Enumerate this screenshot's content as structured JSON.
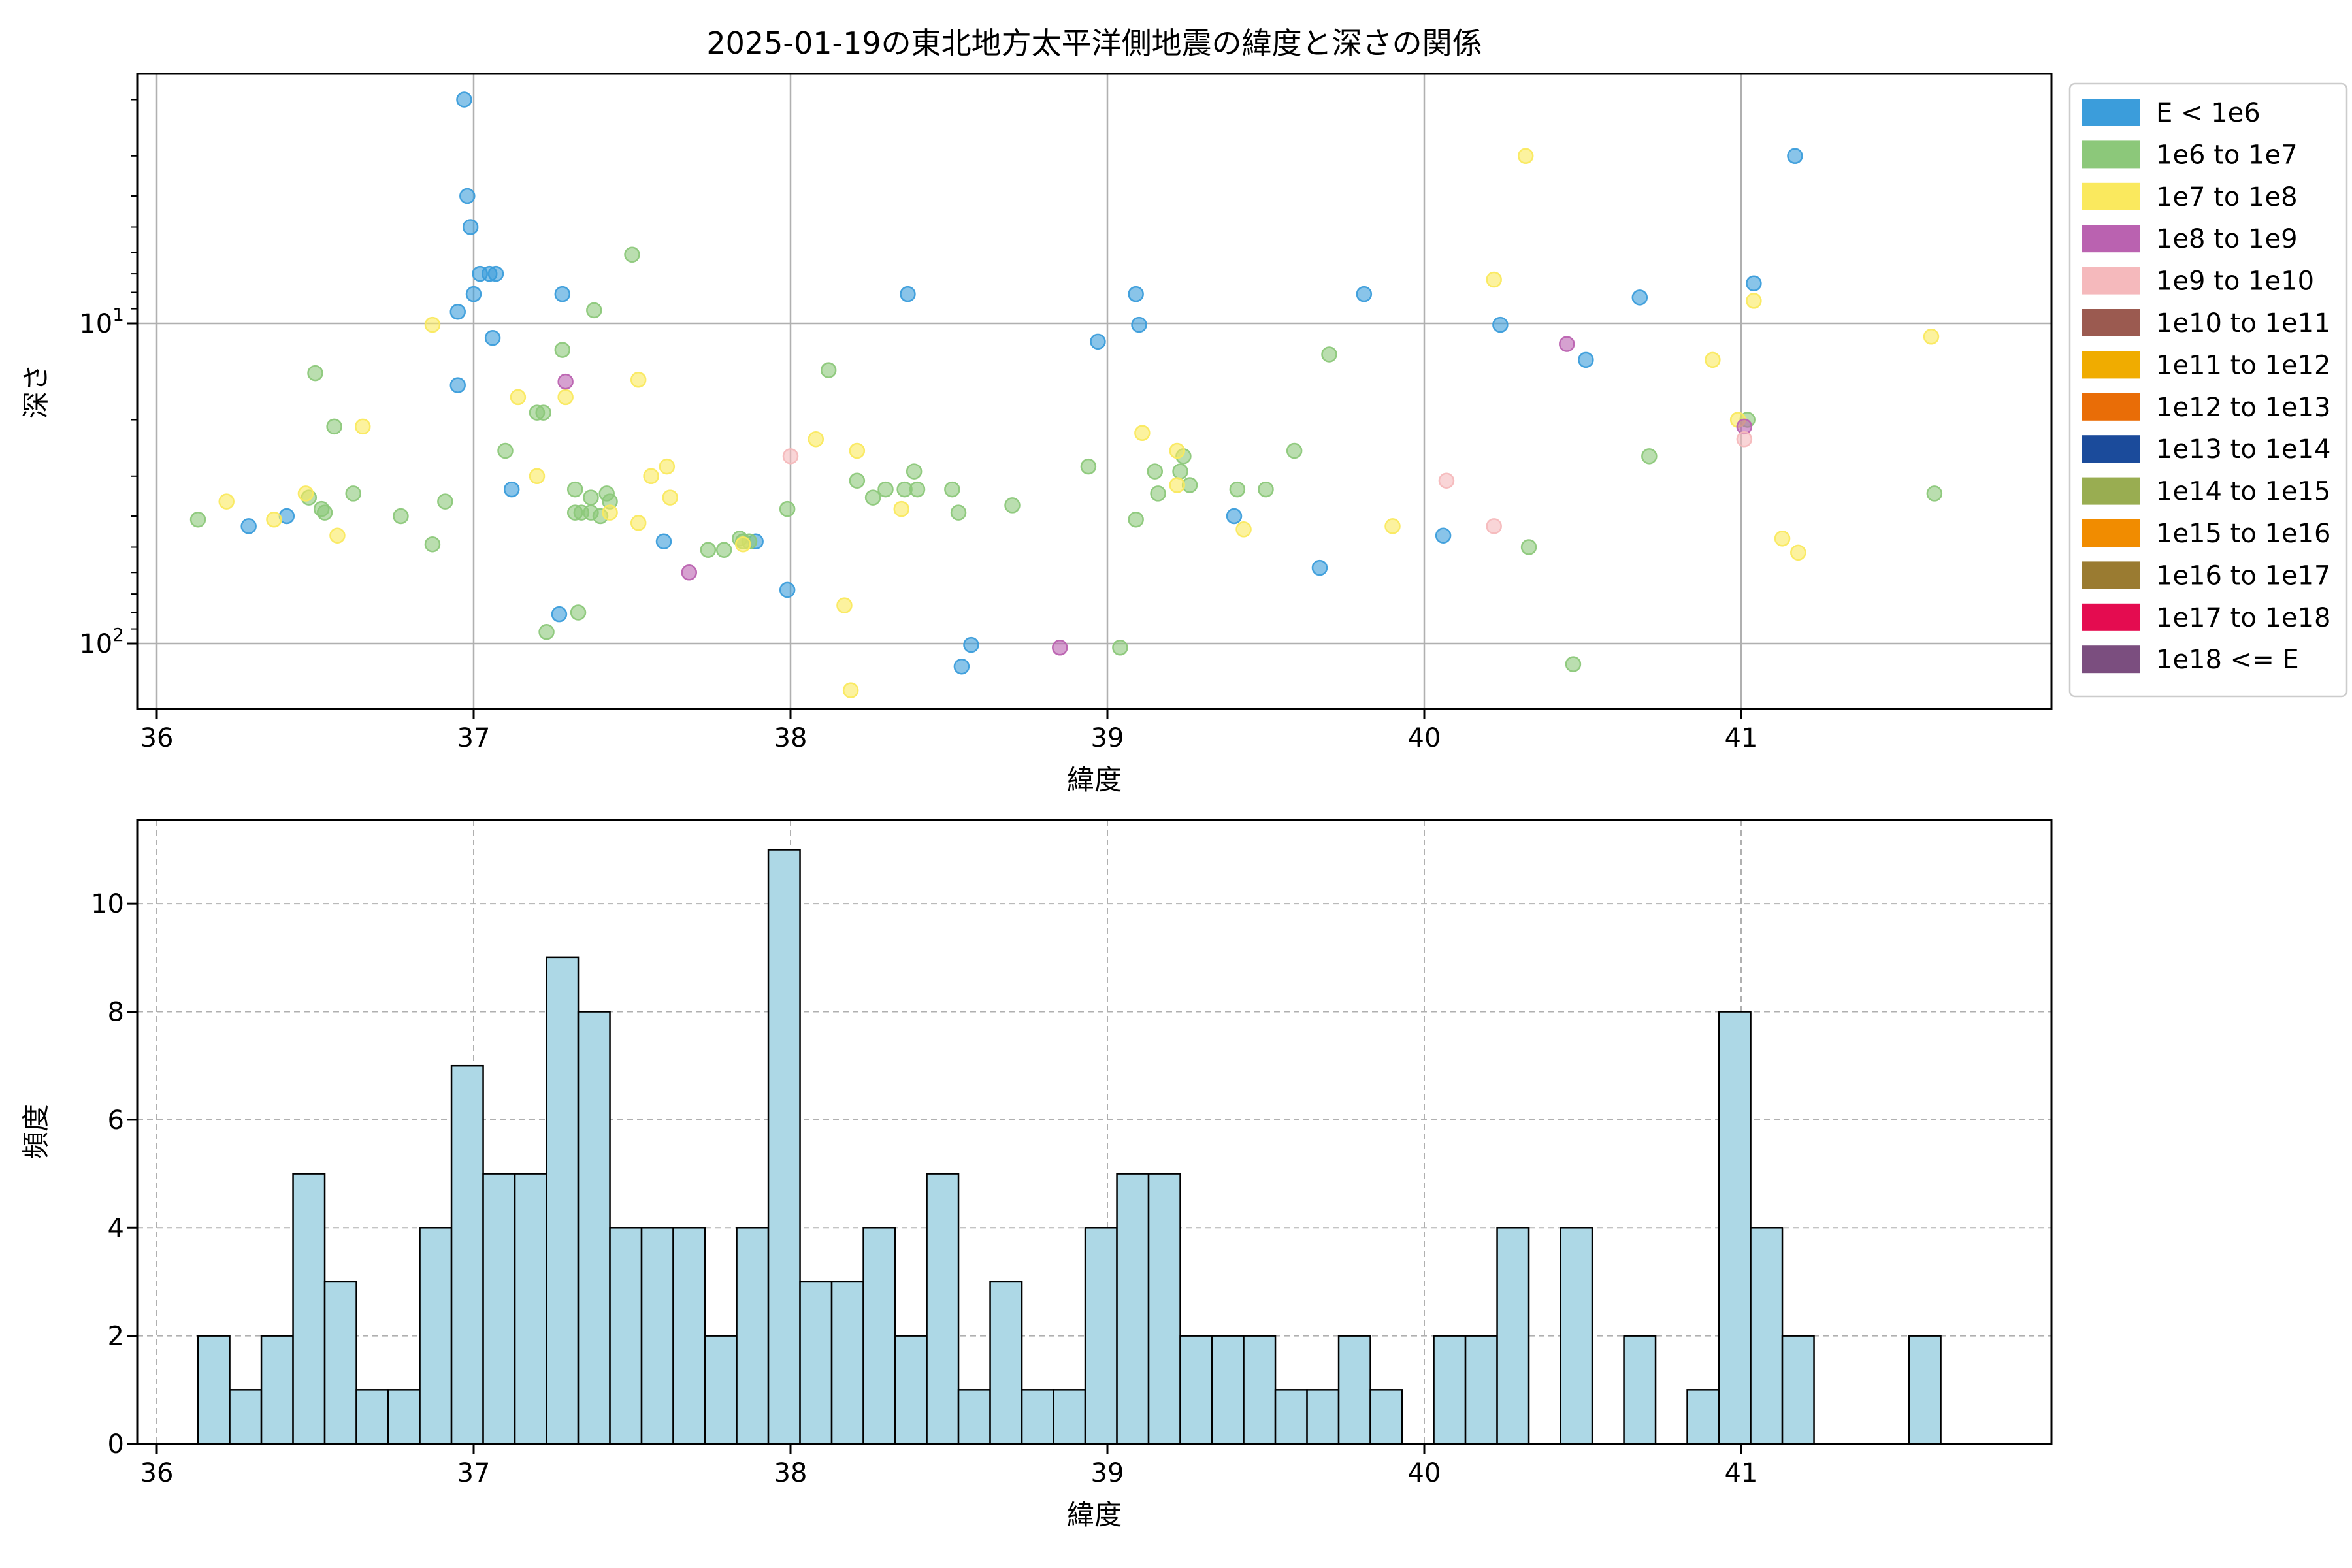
{
  "title": "2025-01-19の東北地方太平洋側地震の緯度と深さの関係",
  "legend": {
    "entries": [
      {
        "label": "E < 1e6",
        "color": "#3B9DDB"
      },
      {
        "label": "1e6 to 1e7",
        "color": "#8CC87A"
      },
      {
        "label": "1e7 to 1e8",
        "color": "#FAE95E"
      },
      {
        "label": "1e8 to 1e9",
        "color": "#BA62B0"
      },
      {
        "label": "1e9 to 1e10",
        "color": "#F5B9BC"
      },
      {
        "label": "1e10 to 1e11",
        "color": "#9B5A50"
      },
      {
        "label": "1e11 to 1e12",
        "color": "#F0AC00"
      },
      {
        "label": "1e12 to 1e13",
        "color": "#E96D07"
      },
      {
        "label": "1e13 to 1e14",
        "color": "#1B4B9B"
      },
      {
        "label": "1e14 to 1e15",
        "color": "#99AD51"
      },
      {
        "label": "1e15 to 1e16",
        "color": "#F18C00"
      },
      {
        "label": "1e16 to 1e17",
        "color": "#9A7B31"
      },
      {
        "label": "1e17 to 1e18",
        "color": "#E40C50"
      },
      {
        "label": "1e18 <= E",
        "color": "#7B4E7F"
      }
    ]
  },
  "chart_data": [
    {
      "type": "scatter",
      "title": "2025-01-19の東北地方太平洋側地震の緯度と深さの関係",
      "xlabel": "緯度",
      "ylabel": "深さ",
      "xlim": [
        35.94,
        41.98
      ],
      "ylim": [
        1.66,
        160
      ],
      "y_scale": "log-inverted",
      "xticks": [
        36,
        37,
        38,
        39,
        40,
        41
      ],
      "yticks": [
        {
          "v": 10,
          "base": "10",
          "exp": "1"
        },
        {
          "v": 100,
          "base": "10",
          "exp": "2"
        }
      ],
      "grid": "solid-major",
      "marker_alpha": 0.6,
      "classes": [
        "E < 1e6",
        "1e6 to 1e7",
        "1e7 to 1e8",
        "1e8 to 1e9",
        "1e9 to 1e10",
        "1e10 to 1e11",
        "1e11 to 1e12",
        "1e12 to 1e13",
        "1e13 to 1e14",
        "1e14 to 1e15",
        "1e15 to 1e16",
        "1e16 to 1e17",
        "1e17 to 1e18",
        "1e18 <= E"
      ],
      "points": [
        [
          36.97,
          2.0,
          0
        ],
        [
          36.98,
          4.0,
          0
        ],
        [
          36.99,
          5.0,
          0
        ],
        [
          37.02,
          7.0,
          0
        ],
        [
          37.05,
          7.0,
          0
        ],
        [
          37.07,
          7.0,
          0
        ],
        [
          37.0,
          8.1,
          0
        ],
        [
          36.95,
          9.2,
          0
        ],
        [
          37.28,
          8.1,
          0
        ],
        [
          37.06,
          11.1,
          0
        ],
        [
          36.95,
          15.6,
          0
        ],
        [
          36.29,
          43,
          0
        ],
        [
          36.41,
          40,
          0
        ],
        [
          37.12,
          33,
          0
        ],
        [
          37.6,
          48,
          0
        ],
        [
          37.89,
          48,
          0
        ],
        [
          37.27,
          81,
          0
        ],
        [
          37.99,
          68,
          0
        ],
        [
          38.37,
          8.1,
          0
        ],
        [
          38.57,
          101,
          0
        ],
        [
          38.54,
          118,
          0
        ],
        [
          38.97,
          11.4,
          0
        ],
        [
          39.09,
          8.1,
          0
        ],
        [
          39.1,
          10.1,
          0
        ],
        [
          39.4,
          40,
          0
        ],
        [
          39.67,
          58,
          0
        ],
        [
          39.81,
          8.1,
          0
        ],
        [
          40.06,
          46,
          0
        ],
        [
          40.24,
          10.1,
          0
        ],
        [
          40.51,
          13,
          0
        ],
        [
          40.68,
          8.3,
          0
        ],
        [
          41.04,
          7.5,
          0
        ],
        [
          41.17,
          3.0,
          0
        ],
        [
          37.5,
          6.1,
          1
        ],
        [
          37.38,
          9.1,
          1
        ],
        [
          37.28,
          12.1,
          1
        ],
        [
          36.5,
          14.3,
          1
        ],
        [
          37.2,
          19,
          1
        ],
        [
          37.22,
          19,
          1
        ],
        [
          36.56,
          21,
          1
        ],
        [
          37.1,
          25,
          1
        ],
        [
          36.13,
          41,
          1
        ],
        [
          36.48,
          35,
          1
        ],
        [
          36.52,
          38,
          1
        ],
        [
          36.53,
          39,
          1
        ],
        [
          36.62,
          34,
          1
        ],
        [
          36.77,
          40,
          1
        ],
        [
          36.91,
          36,
          1
        ],
        [
          36.87,
          49,
          1
        ],
        [
          37.32,
          33,
          1
        ],
        [
          37.37,
          35,
          1
        ],
        [
          37.42,
          34,
          1
        ],
        [
          37.43,
          36,
          1
        ],
        [
          37.32,
          39,
          1
        ],
        [
          37.34,
          39,
          1
        ],
        [
          37.37,
          39,
          1
        ],
        [
          37.4,
          40,
          1
        ],
        [
          37.74,
          51,
          1
        ],
        [
          37.79,
          51,
          1
        ],
        [
          37.84,
          47,
          1
        ],
        [
          37.85,
          48,
          1
        ],
        [
          37.87,
          48,
          1
        ],
        [
          37.33,
          80,
          1
        ],
        [
          37.23,
          92,
          1
        ],
        [
          37.99,
          38,
          1
        ],
        [
          38.12,
          14,
          1
        ],
        [
          38.21,
          31,
          1
        ],
        [
          38.26,
          35,
          1
        ],
        [
          38.3,
          33,
          1
        ],
        [
          38.36,
          33,
          1
        ],
        [
          38.39,
          29,
          1
        ],
        [
          38.4,
          33,
          1
        ],
        [
          38.51,
          33,
          1
        ],
        [
          38.53,
          39,
          1
        ],
        [
          38.7,
          37,
          1
        ],
        [
          38.94,
          28,
          1
        ],
        [
          39.04,
          103,
          1
        ],
        [
          39.09,
          41,
          1
        ],
        [
          39.15,
          29,
          1
        ],
        [
          39.16,
          34,
          1
        ],
        [
          39.23,
          29,
          1
        ],
        [
          39.24,
          26,
          1
        ],
        [
          39.26,
          32,
          1
        ],
        [
          39.41,
          33,
          1
        ],
        [
          39.5,
          33,
          1
        ],
        [
          39.59,
          25,
          1
        ],
        [
          39.7,
          12.5,
          1
        ],
        [
          40.33,
          50,
          1
        ],
        [
          40.47,
          116,
          1
        ],
        [
          40.71,
          26,
          1
        ],
        [
          41.02,
          20,
          1
        ],
        [
          41.61,
          34,
          1
        ],
        [
          36.87,
          10.1,
          2
        ],
        [
          37.14,
          17,
          2
        ],
        [
          37.29,
          17,
          2
        ],
        [
          37.52,
          15,
          2
        ],
        [
          37.2,
          30,
          2
        ],
        [
          36.22,
          36,
          2
        ],
        [
          36.37,
          41,
          2
        ],
        [
          36.47,
          34,
          2
        ],
        [
          36.57,
          46,
          2
        ],
        [
          36.65,
          21,
          2
        ],
        [
          37.56,
          30,
          2
        ],
        [
          37.61,
          28,
          2
        ],
        [
          37.43,
          39,
          2
        ],
        [
          37.52,
          42,
          2
        ],
        [
          37.62,
          35,
          2
        ],
        [
          37.85,
          49,
          2
        ],
        [
          38.08,
          23,
          2
        ],
        [
          38.21,
          25,
          2
        ],
        [
          38.35,
          38,
          2
        ],
        [
          38.17,
          76,
          2
        ],
        [
          38.19,
          140,
          2
        ],
        [
          39.11,
          22,
          2
        ],
        [
          39.22,
          25,
          2
        ],
        [
          39.22,
          32,
          2
        ],
        [
          39.43,
          44,
          2
        ],
        [
          39.9,
          43,
          2
        ],
        [
          40.32,
          3.0,
          2
        ],
        [
          40.22,
          7.3,
          2
        ],
        [
          40.91,
          13,
          2
        ],
        [
          40.99,
          20,
          2
        ],
        [
          41.04,
          8.5,
          2
        ],
        [
          41.13,
          47,
          2
        ],
        [
          41.18,
          52,
          2
        ],
        [
          41.6,
          11,
          2
        ],
        [
          37.29,
          15.2,
          3
        ],
        [
          37.68,
          60,
          3
        ],
        [
          38.85,
          103,
          3
        ],
        [
          40.45,
          11.6,
          3
        ],
        [
          41.01,
          21,
          3
        ],
        [
          38.0,
          26,
          4
        ],
        [
          40.07,
          31,
          4
        ],
        [
          40.22,
          43,
          4
        ],
        [
          41.01,
          23,
          4
        ]
      ]
    },
    {
      "type": "histogram",
      "xlabel": "緯度",
      "ylabel": "頻度",
      "xlim": [
        35.94,
        41.98
      ],
      "ylim": [
        0,
        11.55
      ],
      "xticks": [
        36,
        37,
        38,
        39,
        40,
        41
      ],
      "yticks": [
        0,
        2,
        4,
        6,
        8,
        10
      ],
      "grid": "dashed",
      "bar_fill": "#ADD8E6",
      "bar_edge": "#000000",
      "bin_start": 36.13,
      "bin_width": 0.1,
      "counts": [
        2,
        1,
        2,
        5,
        3,
        1,
        1,
        4,
        7,
        5,
        5,
        9,
        8,
        4,
        4,
        4,
        2,
        4,
        11,
        3,
        3,
        4,
        2,
        5,
        1,
        3,
        1,
        1,
        4,
        5,
        5,
        2,
        2,
        2,
        1,
        1,
        2,
        1,
        0,
        2,
        2,
        4,
        0,
        4,
        0,
        2,
        0,
        1,
        8,
        4,
        2,
        0,
        0,
        0,
        2
      ]
    }
  ],
  "style": {
    "grid_color": "#B0B0B0",
    "spine_color": "#000000",
    "legend_border": "#CCCCCC",
    "background": "#FFFFFF"
  }
}
